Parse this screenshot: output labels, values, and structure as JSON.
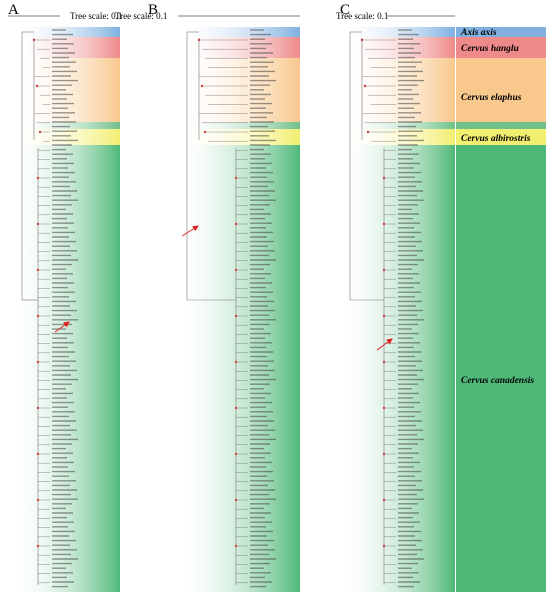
{
  "panels": [
    {
      "label": "A",
      "scale": "Tree scale: 0.1"
    },
    {
      "label": "B",
      "scale": "Tree scale: 0.1"
    },
    {
      "label": "C",
      "scale": "Tree scale: 0.1"
    }
  ],
  "clades": [
    {
      "name": "Axis axis"
    },
    {
      "name": "Cervus hanglu"
    },
    {
      "name": "Cervus elaphus"
    },
    {
      "name": "Cervus albirostris"
    },
    {
      "name": "Cervus canadensis"
    }
  ]
}
